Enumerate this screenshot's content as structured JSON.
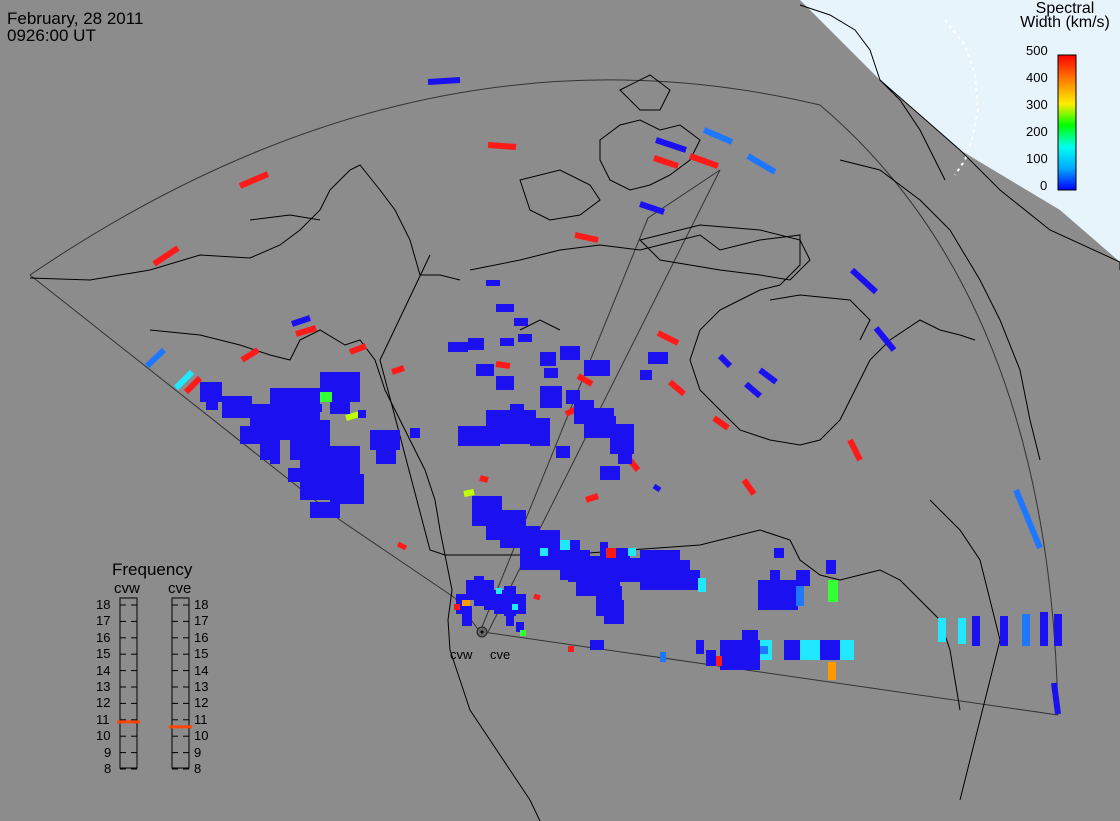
{
  "header": {
    "date": "February, 28 2011",
    "time": "0926:00 UT"
  },
  "colorbar": {
    "title_line1": "Spectral",
    "title_line2": "Width (km/s)",
    "ticks": [
      "500",
      "400",
      "300",
      "200",
      "100",
      "0"
    ],
    "range": [
      0,
      500
    ],
    "colors": [
      "#0000ff",
      "#00aaff",
      "#00ffee",
      "#00ff00",
      "#ffee00",
      "#ff8800",
      "#ff0000"
    ]
  },
  "frequency": {
    "title": "Frequency",
    "radars": [
      "cvw",
      "cve"
    ],
    "scale": [
      "18",
      "17",
      "16",
      "15",
      "14",
      "13",
      "12",
      "11",
      "10",
      "9",
      "8"
    ],
    "values_mhz": {
      "cvw": 10.9,
      "cve": 10.6
    },
    "marker_color": "#ff4400"
  },
  "radars": [
    {
      "name": "cvw"
    },
    {
      "name": "cve"
    }
  ],
  "colors": {
    "background": "#8c8c8c",
    "daylight": "#e8f4fb",
    "coast": "#000000",
    "fov": "#3a3a3a",
    "scatter_low": "#1a10f0",
    "scatter_high": "#ff1a1a"
  }
}
